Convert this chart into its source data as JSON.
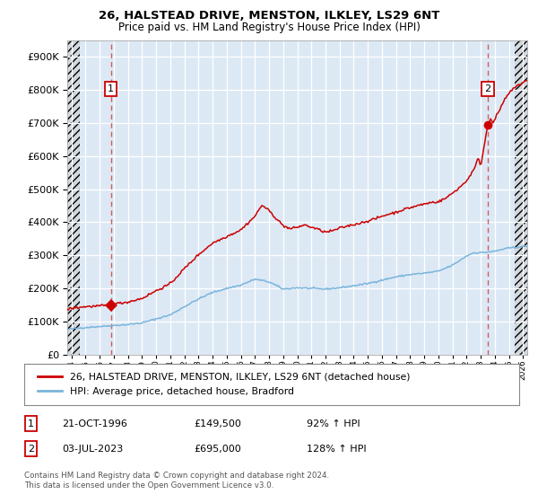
{
  "title": "26, HALSTEAD DRIVE, MENSTON, ILKLEY, LS29 6NT",
  "subtitle": "Price paid vs. HM Land Registry's House Price Index (HPI)",
  "hpi_label": "HPI: Average price, detached house, Bradford",
  "property_label": "26, HALSTEAD DRIVE, MENSTON, ILKLEY, LS29 6NT (detached house)",
  "sale1_date": "21-OCT-1996",
  "sale1_price": 149500,
  "sale1_pct": "92%",
  "sale2_date": "03-JUL-2023",
  "sale2_price": 695000,
  "sale2_pct": "128%",
  "footnote": "Contains HM Land Registry data © Crown copyright and database right 2024.\nThis data is licensed under the Open Government Licence v3.0.",
  "bg_color": "#dce9f5",
  "hpi_line_color": "#7ab4dc",
  "property_line_color": "#cc0000",
  "vline_color_1": "#cc4444",
  "vline_color_2": "#cc4444",
  "marker_color": "#cc0000",
  "hatch_color": "#cccccc",
  "ylim": [
    0,
    950000
  ],
  "xlim_start": 1993.7,
  "xlim_end": 2026.3,
  "hatch_left_end": 1994.58,
  "hatch_right_start": 2025.42,
  "sale1_x": 1996.79,
  "sale2_x": 2023.5
}
